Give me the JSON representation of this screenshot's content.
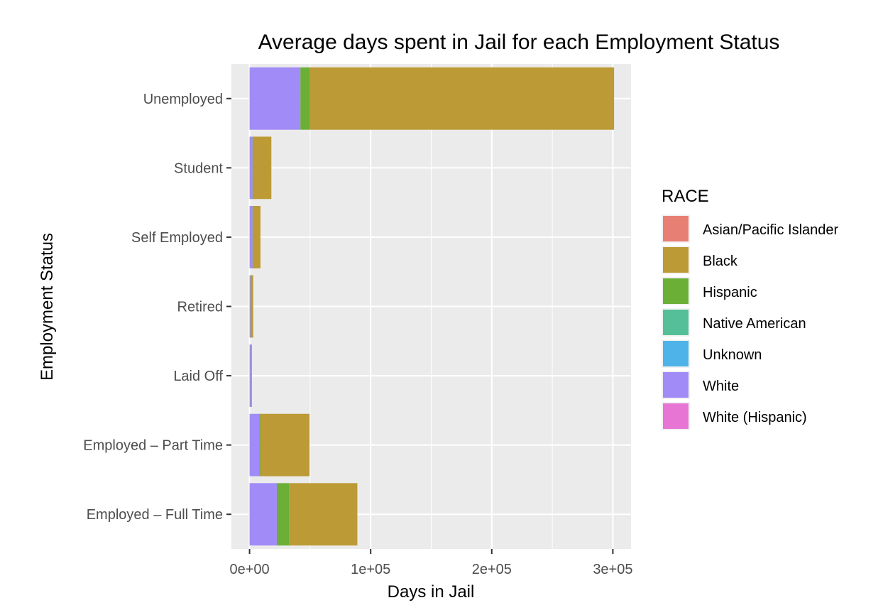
{
  "chart_data": {
    "type": "bar",
    "orientation": "horizontal",
    "stacked": true,
    "title": "Average days spent in Jail for each Employment Status",
    "xlabel": "Days in Jail",
    "ylabel": "Employment Status",
    "xlim": [
      -15000,
      315000
    ],
    "xticks": [
      {
        "value": 0,
        "label": "0e+00"
      },
      {
        "value": 100000,
        "label": "1e+05"
      },
      {
        "value": 200000,
        "label": "2e+05"
      },
      {
        "value": 300000,
        "label": "3e+05"
      }
    ],
    "grid": true,
    "categories": [
      "Unemployed",
      "Student",
      "Self Employed",
      "Retired",
      "Laid Off",
      "Employed – Part Time",
      "Employed – Full Time"
    ],
    "legend": {
      "title": "RACE",
      "position": "right"
    },
    "series": [
      {
        "name": "Asian/Pacific Islander",
        "color": "#F8766D",
        "values": [
          0,
          0,
          0,
          0,
          0,
          0,
          0
        ]
      },
      {
        "name": "Unknown",
        "color": "#00B0F6",
        "values": [
          0,
          0,
          0,
          0,
          0,
          0,
          0
        ]
      },
      {
        "name": "Native American",
        "color": "#00BF7D",
        "values": [
          0,
          0,
          0,
          0,
          0,
          0,
          0
        ]
      },
      {
        "name": "White (Hispanic)",
        "color": "#E76BF3",
        "values": [
          0,
          0,
          0,
          0,
          0,
          0,
          0
        ]
      },
      {
        "name": "White",
        "color": "#A3A500",
        "values": [
          42000,
          2500,
          2500,
          800,
          1200,
          8000,
          22500
        ]
      },
      {
        "name": "Hispanic",
        "color": "#00BA38",
        "values": [
          8000,
          400,
          300,
          200,
          100,
          1000,
          10000
        ]
      },
      {
        "name": "Black",
        "color": "#C49A00",
        "values": [
          251000,
          15100,
          6200,
          2000,
          500,
          40500,
          56500
        ]
      }
    ]
  }
}
